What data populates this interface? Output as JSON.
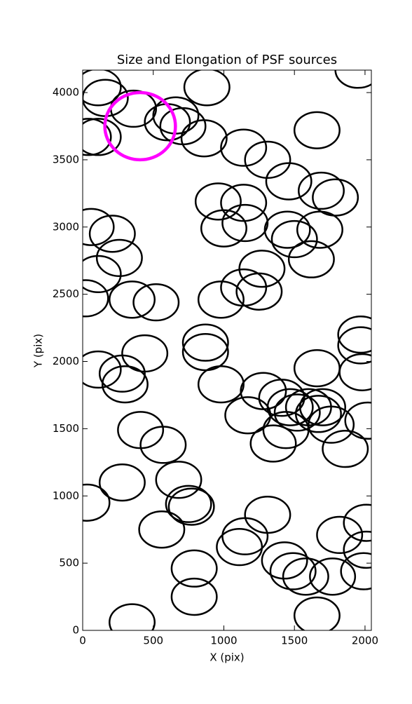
{
  "chart_data": {
    "type": "ellipse",
    "title": "Size and Elongation of PSF sources",
    "xlabel": "X (pix)",
    "ylabel": "Y (pix)",
    "xlim": [
      0,
      2045
    ],
    "ylim": [
      0,
      4167
    ],
    "xticks": [
      0,
      500,
      1000,
      1500,
      2000
    ],
    "yticks": [
      0,
      500,
      1000,
      1500,
      2000,
      2500,
      3000,
      3500,
      4000
    ],
    "grid": false,
    "series": [
      {
        "color": "#000000",
        "width": 320,
        "height": 270,
        "x": [
          110,
          160,
          360,
          660,
          600,
          710,
          880,
          110,
          860,
          1140,
          1310,
          1660,
          1460,
          1690,
          1790,
          960,
          1140,
          1000,
          1150,
          1450,
          1500,
          1680,
          1620,
          60,
          210,
          260,
          110,
          20,
          350,
          520,
          980,
          1140,
          1270,
          1250,
          870,
          870,
          440,
          110,
          280,
          300,
          980,
          1280,
          1660,
          1970,
          1970,
          1980,
          1410,
          1470,
          1600,
          1670,
          1520,
          1700,
          1760,
          1170,
          1350,
          1440,
          1860,
          2020,
          410,
          570,
          280,
          30,
          680,
          750,
          770,
          560,
          1310,
          1150,
          1110,
          1820,
          2010,
          2010,
          1430,
          1490,
          1580,
          1770,
          1990,
          790,
          790,
          350,
          1660,
          1950,
          40
        ],
        "y": [
          4040,
          3960,
          3880,
          3830,
          3780,
          3750,
          4040,
          3670,
          3660,
          3590,
          3500,
          3720,
          3340,
          3270,
          3220,
          3190,
          3180,
          2990,
          3030,
          2980,
          2910,
          2980,
          2760,
          3000,
          2950,
          2770,
          2650,
          2470,
          2460,
          2440,
          2460,
          2550,
          2690,
          2520,
          2140,
          2070,
          2060,
          1940,
          1910,
          1830,
          1830,
          1780,
          1950,
          2200,
          2120,
          1920,
          1730,
          1660,
          1660,
          1610,
          1620,
          1660,
          1530,
          1600,
          1390,
          1490,
          1350,
          1560,
          1490,
          1380,
          1100,
          950,
          1120,
          940,
          920,
          750,
          860,
          700,
          620,
          710,
          800,
          600,
          520,
          440,
          400,
          400,
          440,
          460,
          250,
          60,
          110,
          4170,
          3670
        ]
      },
      {
        "color": "#ff00ff",
        "width": 500,
        "height": 500,
        "x": [
          407
        ],
        "y": [
          3750
        ]
      }
    ]
  }
}
